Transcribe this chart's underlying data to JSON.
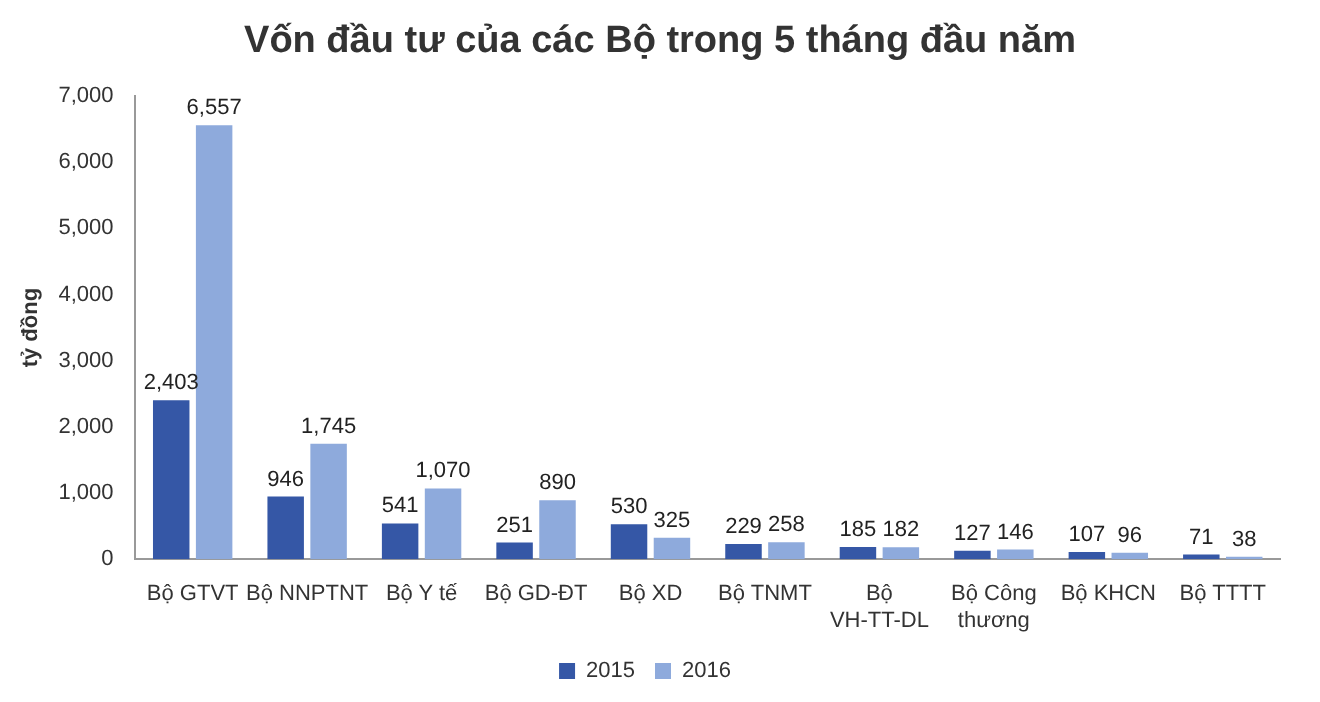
{
  "chart_data": {
    "type": "bar",
    "title": "Vốn đầu tư của các Bộ trong 5 tháng đầu năm",
    "ylabel": "tỷ đồng",
    "categories": [
      "Bộ GTVT",
      "Bộ NNPTNT",
      "Bộ Y tế",
      "Bộ GD-ĐT",
      "Bộ XD",
      "Bộ TNMT",
      "Bộ VH-TT-DL",
      "Bộ Công thương",
      "Bộ KHCN",
      "Bộ TTTT"
    ],
    "series": [
      {
        "name": "2015",
        "color": "#3557a6",
        "values": [
          2403,
          946,
          541,
          251,
          530,
          229,
          185,
          127,
          107,
          71
        ],
        "value_labels": [
          "2,403",
          "946",
          "541",
          "251",
          "530",
          "229",
          "185",
          "127",
          "107",
          "71"
        ]
      },
      {
        "name": "2016",
        "color": "#8eaadc",
        "values": [
          6557,
          1745,
          1070,
          890,
          325,
          258,
          182,
          146,
          96,
          38
        ],
        "value_labels": [
          "6,557",
          "1,745",
          "1,070",
          "890",
          "325",
          "258",
          "182",
          "146",
          "96",
          "38"
        ]
      }
    ],
    "ylim": [
      0,
      7000
    ],
    "yticks": [
      0,
      {
        "value": 1000,
        "label": "1,000"
      },
      {
        "value": 2000,
        "label": "2,000"
      },
      {
        "value": 3000,
        "label": "3,000"
      },
      {
        "value": 4000,
        "label": "4,000"
      },
      {
        "value": 5000,
        "label": "5,000"
      },
      {
        "value": 6000,
        "label": "6,000"
      },
      {
        "value": 7000,
        "label": "7,000"
      }
    ],
    "grid": false,
    "legend": "bottom"
  }
}
